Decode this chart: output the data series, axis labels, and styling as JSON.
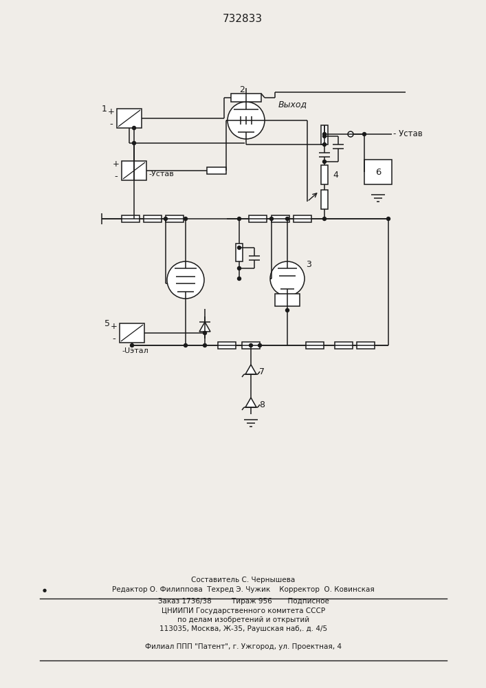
{
  "title": "732833",
  "bg_color": "#f0ede8",
  "line_color": "#1a1a1a",
  "text_color": "#1a1a1a",
  "footer": {
    "line1": "Составитель С. Чернышева",
    "line2": "Редактор О. Филиппова  Техред Э. Чужик    Корректор  О. Ковинская",
    "line3": "Заказ 1736/38         Тираж 956       Подписное",
    "line4": "ЦНИИПИ Государственного комитета СССР",
    "line5": "по делам изобретений и открытий",
    "line6": "113035, Москва, Ж-35, Раушская наб,. д. 4/5",
    "line7": "Филиал ППП \"Патент\", г. Ужгород, ул. Проектная, 4"
  }
}
